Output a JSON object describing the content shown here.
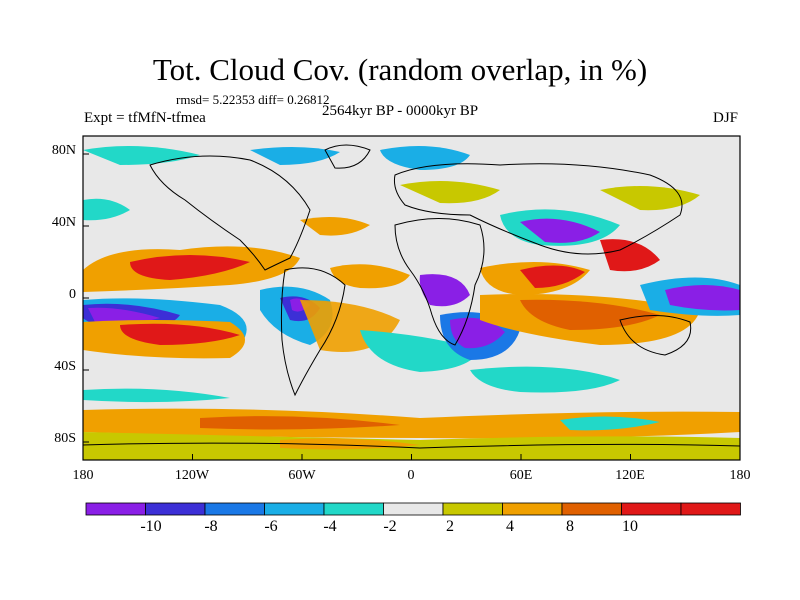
{
  "title": "Tot. Cloud Cov. (random overlap, in %)",
  "stats": "rmsd= 5.22353 diff= 0.26812",
  "experiment": "Expt = tfMfN-tfmea",
  "period": "2564kyr BP - 0000kyr BP",
  "season": "DJF",
  "lat_ticks": [
    "80N",
    "40N",
    "0",
    "40S",
    "80S"
  ],
  "lon_ticks": [
    "180",
    "120W",
    "60W",
    "0",
    "60E",
    "120E",
    "180"
  ],
  "colorbar": {
    "labels": [
      "-10",
      "-8",
      "-6",
      "-4",
      "-2",
      "2",
      "4",
      "8",
      "10"
    ],
    "colors": [
      "#8a1fe6",
      "#3c2fd6",
      "#1a78e6",
      "#1aaee6",
      "#22d8c8",
      "#e8e8e8",
      "#c8c800",
      "#f0a000",
      "#e06000",
      "#e01818",
      "#e01818"
    ]
  },
  "colors": {
    "neutral": "#e8e8e8",
    "coastline": "#000000"
  }
}
